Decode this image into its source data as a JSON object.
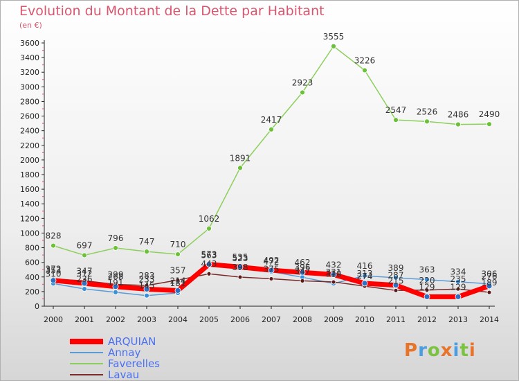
{
  "header": {
    "title": "Evolution du Montant de la Dette par Habitant",
    "subtitle": "(en €)"
  },
  "logo": {
    "text": "Proxiti",
    "letters": [
      "P",
      "r",
      "o",
      "x",
      "i",
      "t",
      "i"
    ]
  },
  "colors": {
    "title": "#d8566e",
    "legend_text": "#4a6ff0",
    "ARQUIAN": "#ff0000",
    "Annay": "#5b9bd5",
    "Faverelles": "#8ccf5c",
    "Lavau": "#7a2a2a",
    "logo": [
      "#e8742a",
      "#4a9de0",
      "#7cc242",
      "#e8742a",
      "#4a9de0",
      "#7cc242",
      "#e8742a"
    ]
  },
  "chart_data": {
    "type": "line",
    "title": "Evolution du Montant de la Dette par Habitant",
    "subtitle": "(en €)",
    "x": [
      "2000",
      "2001",
      "2002",
      "2003",
      "2004",
      "2005",
      "2006",
      "2007",
      "2008",
      "2009",
      "2010",
      "2011",
      "2012",
      "2013",
      "2014"
    ],
    "ylim": [
      0,
      3600
    ],
    "yticks": [
      0,
      200,
      400,
      600,
      800,
      1000,
      1200,
      1400,
      1600,
      1800,
      2000,
      2200,
      2400,
      2600,
      2800,
      3000,
      3200,
      3400,
      3600
    ],
    "grid": false,
    "legend_position": "bottom-left",
    "series": [
      {
        "name": "ARQUIAN",
        "values": [
          353,
          312,
          268,
          233,
          214,
          573,
          535,
          492,
          462,
          432,
          313,
          287,
          129,
          129,
          276
        ]
      },
      {
        "name": "Annay",
        "values": [
          310,
          236,
          191,
          145,
          181,
          563,
          523,
          472,
          396,
          310,
          416,
          389,
          363,
          334,
          306
        ]
      },
      {
        "name": "Faverelles",
        "values": [
          828,
          697,
          796,
          747,
          710,
          1062,
          1891,
          2417,
          2923,
          3555,
          3226,
          2547,
          2526,
          2486,
          2490
        ]
      },
      {
        "name": "Lavau",
        "values": [
          372,
          347,
          299,
          283,
          357,
          443,
          398,
          375,
          347,
          331,
          274,
          215,
          220,
          235,
          189
        ]
      }
    ]
  }
}
